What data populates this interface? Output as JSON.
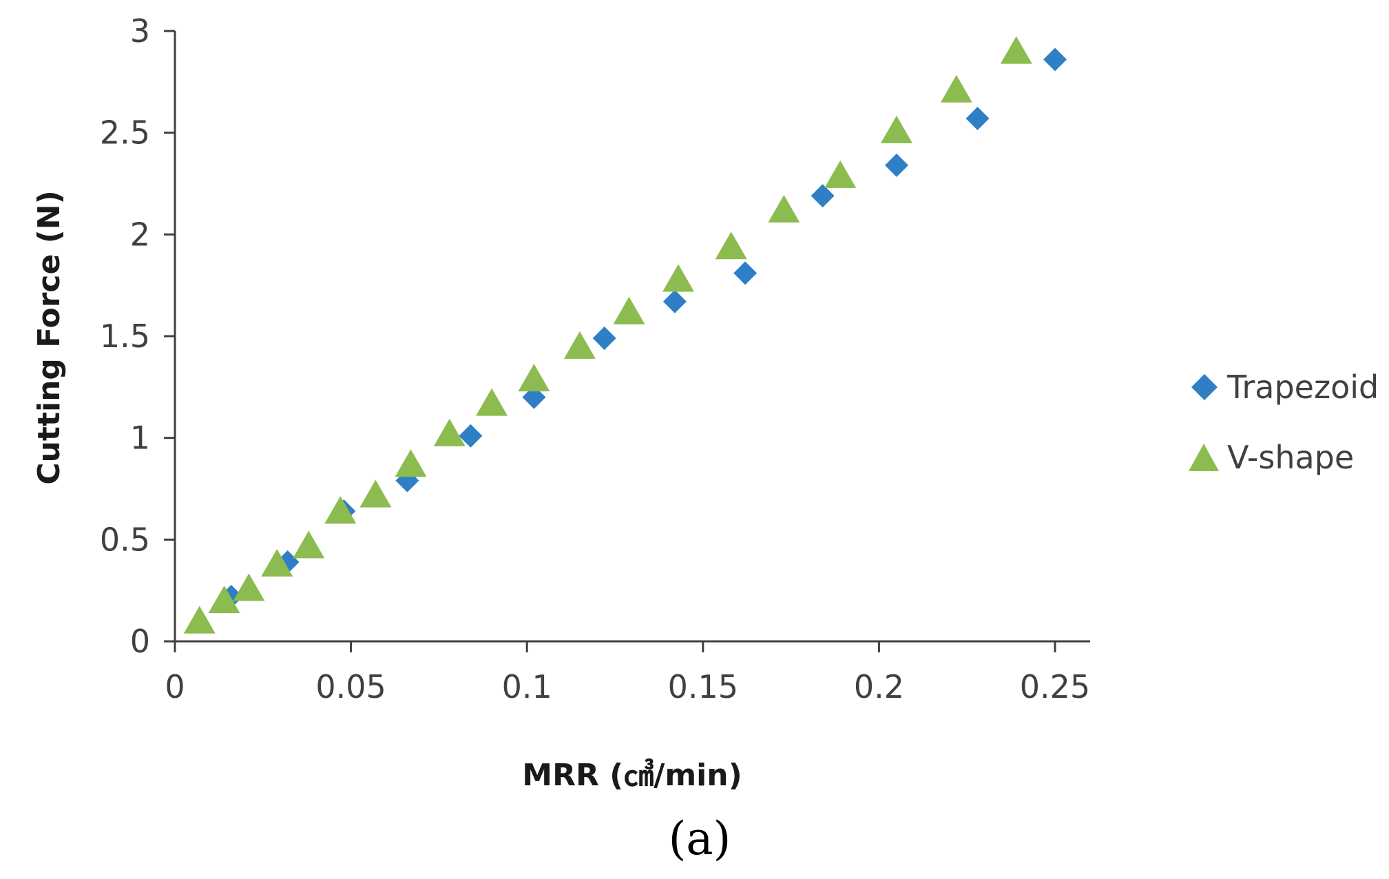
{
  "colors": {
    "trapezoid": "#2e7fc6",
    "vshape": "#8cbc4f",
    "axis": "#404040"
  },
  "panel_label": "(a)",
  "chart_data": {
    "type": "scatter",
    "title": "",
    "xlabel": "MRR (㎤/min)",
    "ylabel": "Cutting Force (N)",
    "xlim": [
      0,
      0.25
    ],
    "ylim": [
      0,
      3
    ],
    "x_ticks": [
      0,
      0.05,
      0.1,
      0.15,
      0.2,
      0.25
    ],
    "x_tick_labels": [
      "0",
      "0.05",
      "0.1",
      "0.15",
      "0.2",
      "0.25"
    ],
    "y_ticks": [
      0,
      0.5,
      1,
      1.5,
      2,
      2.5,
      3
    ],
    "y_tick_labels": [
      "0",
      "0.5",
      "1",
      "1.5",
      "2",
      "2.5",
      "3"
    ],
    "grid": false,
    "legend_position": "right",
    "series": [
      {
        "name": "Trapezoid",
        "marker": "diamond",
        "points": [
          {
            "x": 0.016,
            "y": 0.22
          },
          {
            "x": 0.032,
            "y": 0.39
          },
          {
            "x": 0.048,
            "y": 0.64
          },
          {
            "x": 0.066,
            "y": 0.79
          },
          {
            "x": 0.084,
            "y": 1.01
          },
          {
            "x": 0.102,
            "y": 1.2
          },
          {
            "x": 0.122,
            "y": 1.49
          },
          {
            "x": 0.142,
            "y": 1.67
          },
          {
            "x": 0.162,
            "y": 1.81
          },
          {
            "x": 0.184,
            "y": 2.19
          },
          {
            "x": 0.205,
            "y": 2.34
          },
          {
            "x": 0.228,
            "y": 2.57
          },
          {
            "x": 0.25,
            "y": 2.86
          }
        ]
      },
      {
        "name": "V-shape",
        "marker": "triangle",
        "points": [
          {
            "x": 0.007,
            "y": 0.09
          },
          {
            "x": 0.014,
            "y": 0.19
          },
          {
            "x": 0.021,
            "y": 0.25
          },
          {
            "x": 0.029,
            "y": 0.37
          },
          {
            "x": 0.038,
            "y": 0.46
          },
          {
            "x": 0.047,
            "y": 0.63
          },
          {
            "x": 0.057,
            "y": 0.71
          },
          {
            "x": 0.067,
            "y": 0.86
          },
          {
            "x": 0.078,
            "y": 1.01
          },
          {
            "x": 0.09,
            "y": 1.16
          },
          {
            "x": 0.102,
            "y": 1.28
          },
          {
            "x": 0.115,
            "y": 1.44
          },
          {
            "x": 0.129,
            "y": 1.61
          },
          {
            "x": 0.143,
            "y": 1.77
          },
          {
            "x": 0.158,
            "y": 1.93
          },
          {
            "x": 0.173,
            "y": 2.11
          },
          {
            "x": 0.189,
            "y": 2.28
          },
          {
            "x": 0.205,
            "y": 2.5
          },
          {
            "x": 0.222,
            "y": 2.7
          },
          {
            "x": 0.239,
            "y": 2.89
          }
        ]
      }
    ]
  }
}
